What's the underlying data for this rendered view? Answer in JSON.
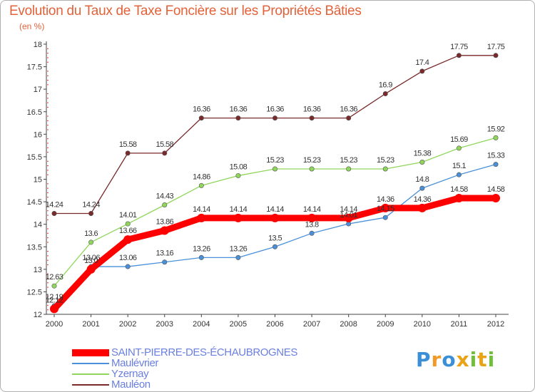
{
  "header": {
    "title": "Evolution du Taux de Taxe Foncière sur les Propriétés Bâties",
    "unit": "(en %)"
  },
  "logo": {
    "letters": [
      "P",
      "r",
      "o",
      "x",
      "i",
      "t",
      "i"
    ],
    "colors": [
      "#3a8fd6",
      "#f09a28",
      "#3a8fd6",
      "#e8a317",
      "#6fbf3a",
      "#e8a317",
      "#6fbf3a"
    ]
  },
  "chart_data": {
    "type": "line",
    "x": [
      "2000",
      "2001",
      "2002",
      "2003",
      "2004",
      "2005",
      "2006",
      "2007",
      "2008",
      "2009",
      "2010",
      "2011",
      "2012"
    ],
    "ylim": [
      12,
      18
    ],
    "yticks": [
      "12",
      "12.5",
      "13",
      "13.5",
      "14",
      "14.5",
      "15",
      "15.5",
      "16",
      "16.5",
      "17",
      "17.5",
      "18"
    ],
    "grid": false,
    "legend": "bottom-left",
    "series": [
      {
        "name": "SAINT-PIERRE-DES-ÉCHAUBROGNES",
        "color": "#ff0000",
        "values": [
          12.12,
          13.0,
          13.66,
          13.86,
          14.14,
          14.14,
          14.14,
          14.14,
          14.14,
          14.36,
          14.36,
          14.58,
          14.58
        ],
        "labels": [
          "12.12",
          "13.0",
          "13.66",
          "13.86",
          "14.14",
          "14.14",
          "14.14",
          "14.14",
          "14.14",
          "14.36",
          "14.36",
          "14.58",
          "14.58"
        ]
      },
      {
        "name": "Maulévrier",
        "color": "#4a90d9",
        "values": [
          12.19,
          13.06,
          13.06,
          13.16,
          13.26,
          13.26,
          13.5,
          13.8,
          14.01,
          14.15,
          14.8,
          15.1,
          15.33
        ],
        "labels": [
          "12.19",
          "13.06",
          "13.06",
          "13.16",
          "13.26",
          "13.26",
          "13.5",
          "13.8",
          "14.01",
          "14.15",
          "14.8",
          "15.1",
          "15.33"
        ]
      },
      {
        "name": "Yzernay",
        "color": "#8fd65a",
        "values": [
          12.63,
          13.6,
          14.01,
          14.43,
          14.86,
          15.08,
          15.23,
          15.23,
          15.23,
          15.23,
          15.38,
          15.69,
          15.92
        ],
        "labels": [
          "12.63",
          "13.6",
          "14.01",
          "14.43",
          "14.86",
          "15.08",
          "15.23",
          "15.23",
          "15.23",
          "15.23",
          "15.38",
          "15.69",
          "15.92"
        ]
      },
      {
        "name": "Mauléon",
        "color": "#7a2a2a",
        "values": [
          14.24,
          14.24,
          15.58,
          15.58,
          16.36,
          16.36,
          16.36,
          16.36,
          16.36,
          16.9,
          17.4,
          17.75,
          17.75
        ],
        "labels": [
          "14.24",
          "14.24",
          "15.58",
          "15.58",
          "16.36",
          "16.36",
          "16.36",
          "16.36",
          "16.36",
          "16.9",
          "17.4",
          "17.75",
          "17.75"
        ]
      }
    ]
  }
}
